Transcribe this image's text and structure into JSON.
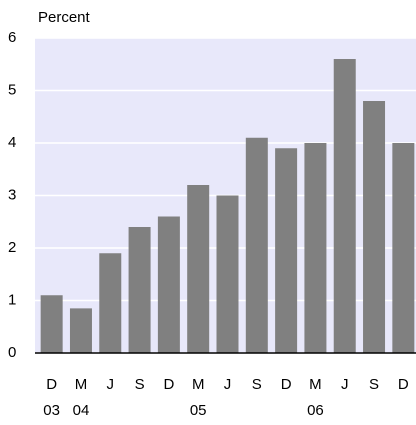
{
  "chart_data": {
    "type": "bar",
    "y_label": "Percent",
    "categories": [
      "D",
      "M",
      "J",
      "S",
      "D",
      "M",
      "J",
      "S",
      "D",
      "M",
      "J",
      "S",
      "D"
    ],
    "category_years": [
      "03",
      "04",
      null,
      null,
      null,
      "05",
      null,
      null,
      null,
      "06",
      null,
      null,
      null
    ],
    "values": [
      1.1,
      0.85,
      1.9,
      2.4,
      2.6,
      3.2,
      3.0,
      4.1,
      3.9,
      4.0,
      5.6,
      4.8,
      4.0
    ],
    "color": "#808080",
    "ylim": [
      0,
      6
    ],
    "yticks": [
      0,
      1,
      2,
      3,
      4,
      5,
      6
    ],
    "grid": true
  }
}
